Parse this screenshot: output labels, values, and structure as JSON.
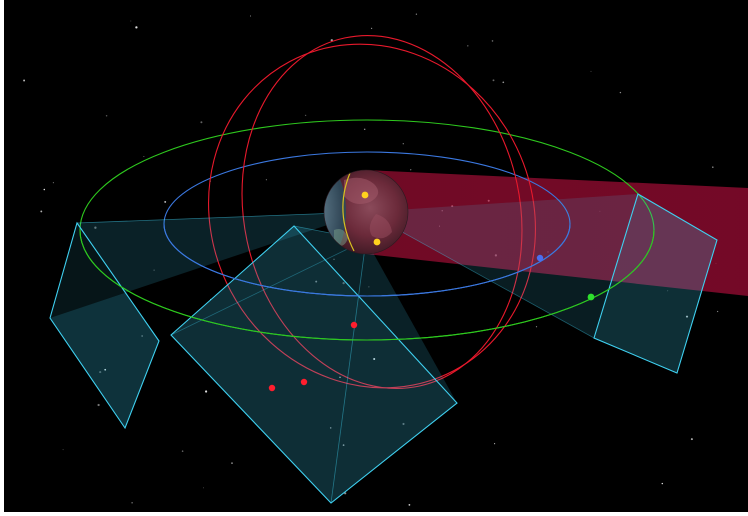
{
  "scene": {
    "type": "3d-orbit-visualization",
    "background_color": "#000000",
    "colors": {
      "inclined_orbits": "#e8192c",
      "equatorial_orbit_outer": "#2ec81e",
      "equatorial_orbit_inner": "#3b78e0",
      "sensor_frustum": "#3fd0f0",
      "shadow_cone": "#a8103c",
      "sun_terminator": "#d8c020",
      "satellite_yellow": "#ffd21e"
    },
    "objects": {
      "central_body": "earth-globe",
      "orbits": [
        "inclined-orbit-1",
        "inclined-orbit-2",
        "equatorial-orbit-outer",
        "equatorial-orbit-inner"
      ],
      "sensor_frustums": [
        "sensor-frustum-left",
        "sensor-frustum-center",
        "sensor-frustum-right"
      ],
      "satellites_red": 3,
      "satellites_yellow": 2,
      "satellites_green": 1,
      "satellites_blue": 1
    }
  }
}
